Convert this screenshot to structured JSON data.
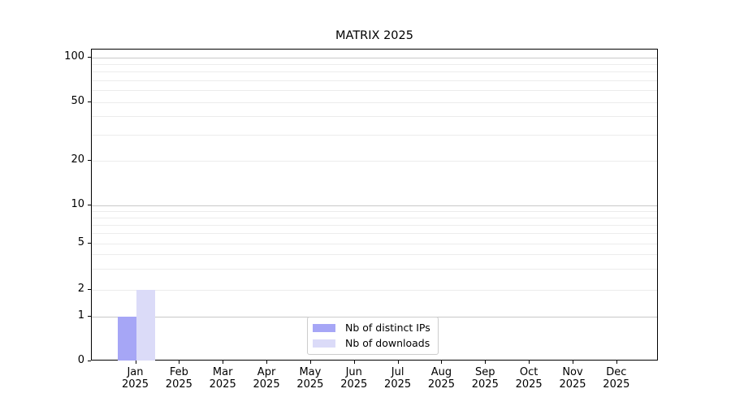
{
  "chart_data": {
    "type": "bar",
    "title": "MATRIX 2025",
    "categories": [
      "Jan 2025",
      "Feb 2025",
      "Mar 2025",
      "Apr 2025",
      "May 2025",
      "Jun 2025",
      "Jul 2025",
      "Aug 2025",
      "Sep 2025",
      "Oct 2025",
      "Nov 2025",
      "Dec 2025"
    ],
    "series": [
      {
        "name": "Nb of distinct IPs",
        "color": "#a6a6f6",
        "values": [
          1,
          0,
          0,
          0,
          0,
          0,
          0,
          0,
          0,
          0,
          0,
          0
        ]
      },
      {
        "name": "Nb of downloads",
        "color": "#dbdbf8",
        "values": [
          2,
          0,
          0,
          0,
          0,
          0,
          0,
          0,
          0,
          0,
          0,
          0
        ]
      }
    ],
    "y_axis": {
      "scale": "log-like",
      "tick_labels": [
        0,
        1,
        2,
        5,
        10,
        20,
        50,
        100
      ],
      "major_gridline_values": [
        1,
        10,
        100
      ],
      "minor_gridline_values": [
        2,
        3,
        4,
        5,
        6,
        7,
        8,
        9,
        20,
        30,
        40,
        50,
        60,
        70,
        80,
        90
      ]
    },
    "legend": {
      "position": "lower center"
    },
    "colors": {
      "grid_major": "#c8c8c8",
      "grid_minor": "#ececec",
      "axis": "#000000",
      "background": "#ffffff"
    }
  }
}
